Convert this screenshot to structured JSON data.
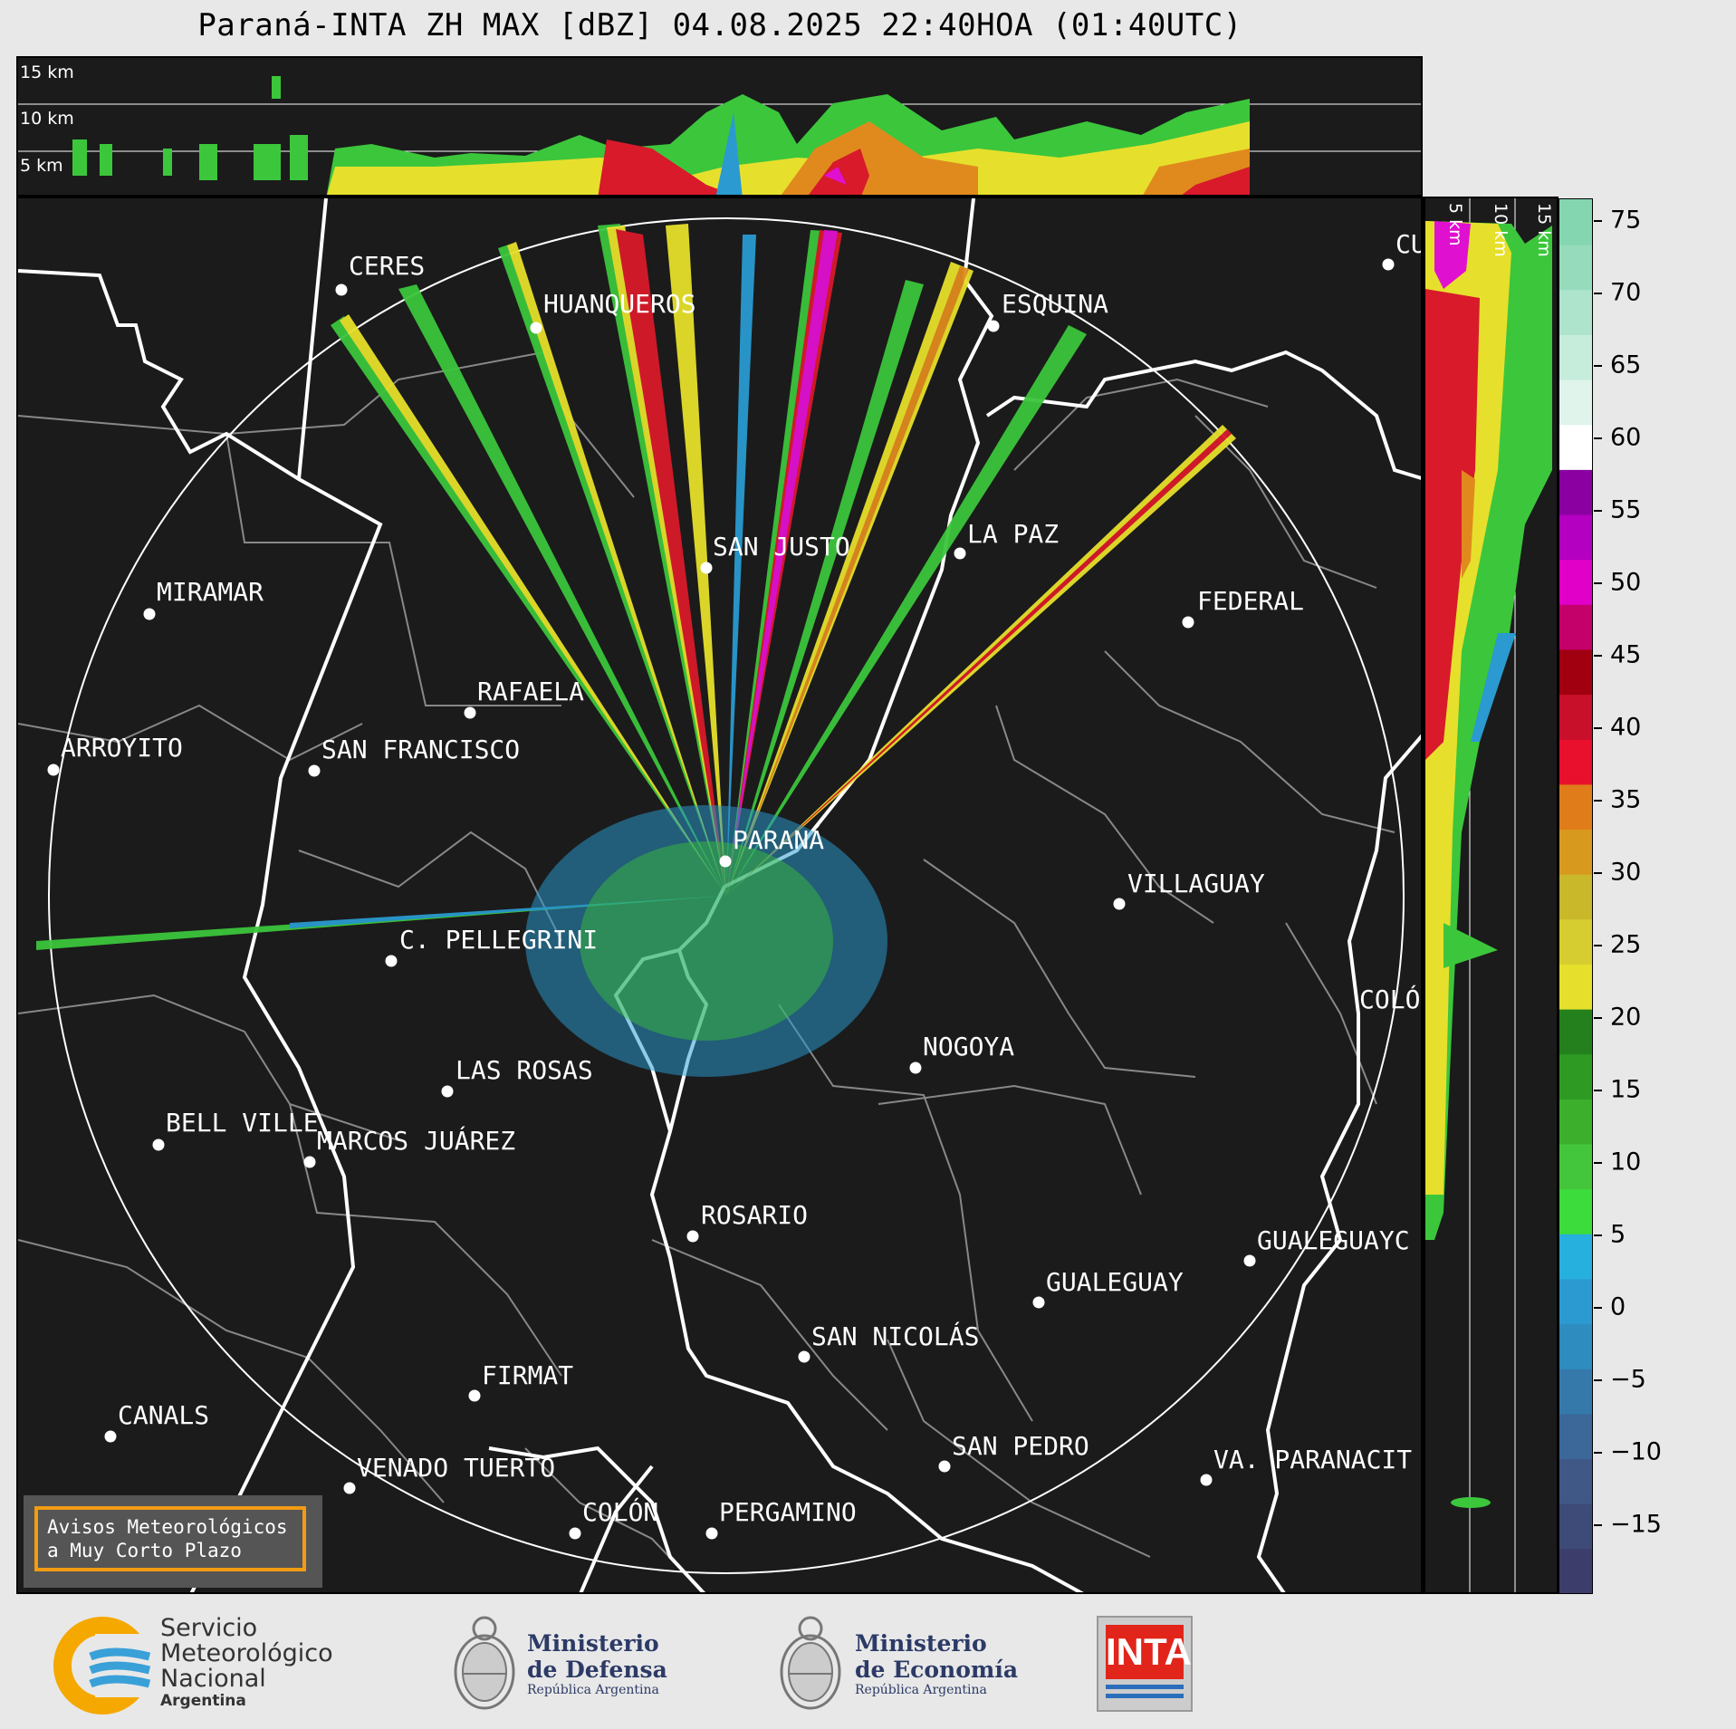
{
  "title": "Paraná-INTA ZH MAX [dBZ] 04.08.2025 22:40HOA (01:40UTC)",
  "cross_section": {
    "top_height_labels": [
      "15 km",
      "10 km",
      "5 km"
    ],
    "right_height_labels": [
      "5 km",
      "10 km",
      "15 km"
    ]
  },
  "colorbar": {
    "unit": "dBZ",
    "ticks": [
      "75",
      "70",
      "65",
      "60",
      "55",
      "50",
      "45",
      "40",
      "35",
      "30",
      "25",
      "20",
      "15",
      "10",
      "5",
      "0",
      "−5",
      "−10",
      "−15"
    ]
  },
  "cities": [
    {
      "name": "CERES"
    },
    {
      "name": "HUANQUEROS"
    },
    {
      "name": "ESQUINA"
    },
    {
      "name": "CU"
    },
    {
      "name": "SAN JUSTO"
    },
    {
      "name": "LA PAZ"
    },
    {
      "name": "MIRAMAR"
    },
    {
      "name": "FEDERAL"
    },
    {
      "name": "RAFAELA"
    },
    {
      "name": "ARROYITO"
    },
    {
      "name": "SAN FRANCISCO"
    },
    {
      "name": "PARANÁ"
    },
    {
      "name": "VILLAGUAY"
    },
    {
      "name": "C. PELLEGRINI"
    },
    {
      "name": "COLÓ"
    },
    {
      "name": "NOGOYA"
    },
    {
      "name": "LAS ROSAS"
    },
    {
      "name": "BELL VILLE"
    },
    {
      "name": "MARCOS JUÁREZ"
    },
    {
      "name": "ROSARIO"
    },
    {
      "name": "GUALEGUAYC"
    },
    {
      "name": "GUALEGUAY"
    },
    {
      "name": "SAN NICOLÁS"
    },
    {
      "name": "FIRMAT"
    },
    {
      "name": "CANALS"
    },
    {
      "name": "SAN PEDRO"
    },
    {
      "name": "VENADO TUERTO"
    },
    {
      "name": "VA. PARANACIT"
    },
    {
      "name": "COLÓN"
    },
    {
      "name": "PERGAMINO"
    }
  ],
  "avisos": {
    "line1": "Avisos Meteorológicos",
    "line2": "a Muy Corto Plazo"
  },
  "logos": {
    "smn": {
      "line1": "Servicio",
      "line2": "Meteorológico",
      "line3": "Nacional",
      "line4": "Argentina"
    },
    "defensa": {
      "line1": "Ministerio",
      "line2": "de Defensa",
      "line3": "República Argentina"
    },
    "economia": {
      "line1": "Ministerio",
      "line2": "de Economía",
      "line3": "República Argentina"
    },
    "inta": {
      "text": "INTA"
    }
  },
  "colors": {
    "background": "#1b1b1b",
    "green": "#3cc63c",
    "yellow": "#e6e02c",
    "orange": "#e08a1e",
    "red": "#d81a2a",
    "magenta": "#e010d0",
    "blue": "#2a9ad0",
    "smn_orange": "#f5a800",
    "smn_blue": "#3aa0d8",
    "inta_red": "#e1251b"
  }
}
